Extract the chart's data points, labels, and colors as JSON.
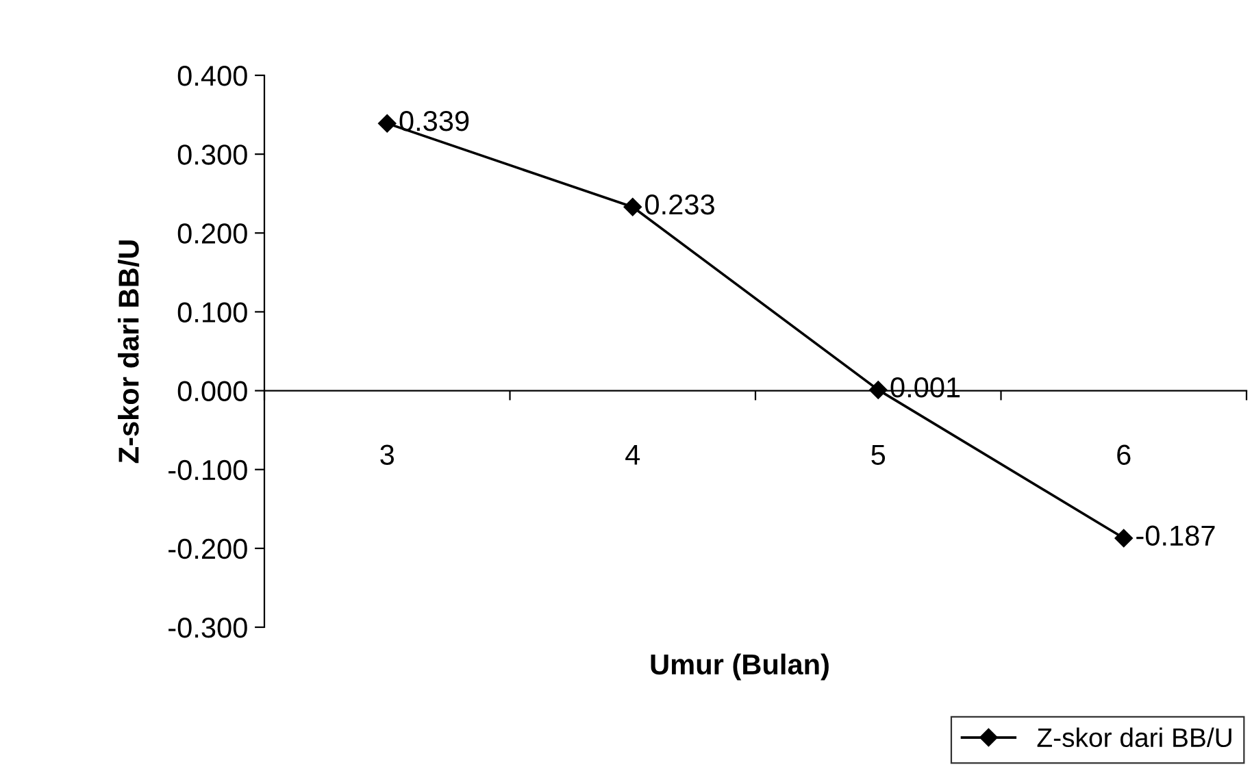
{
  "chart_data": {
    "type": "line",
    "xlabel": "Umur (Bulan)",
    "ylabel": "Z-skor dari BB/U",
    "categories": [
      "3",
      "4",
      "5",
      "6"
    ],
    "series": [
      {
        "name": "Z-skor dari BB/U",
        "color": "#000000",
        "values": [
          0.339,
          0.233,
          0.001,
          -0.187
        ]
      }
    ],
    "ylim": [
      -0.3,
      0.4
    ],
    "yticks": [
      {
        "value": -0.3,
        "label": "-0.300"
      },
      {
        "value": -0.2,
        "label": "-0.200"
      },
      {
        "value": -0.1,
        "label": "-0.100"
      },
      {
        "value": 0,
        "label": "0.000"
      },
      {
        "value": 0.1,
        "label": "0.100"
      },
      {
        "value": 0.2,
        "label": "0.200"
      },
      {
        "value": 0.3,
        "label": "0.300"
      },
      {
        "value": 0.4,
        "label": "0.400"
      }
    ],
    "data_labels": true,
    "marker": "diamond",
    "line_style": "solid",
    "legend": "bottom right",
    "grid": false
  }
}
